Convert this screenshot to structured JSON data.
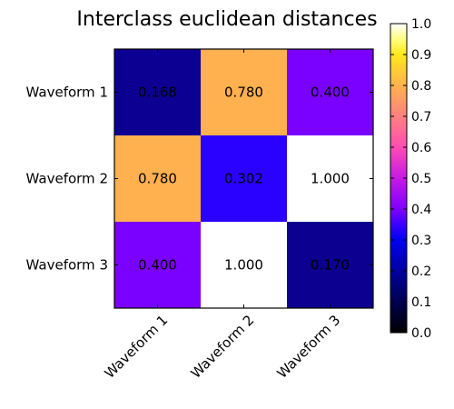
{
  "chart_data": {
    "type": "heatmap",
    "title": "Interclass euclidean distances",
    "xlabel": "",
    "ylabel": "",
    "rows": [
      "Waveform 1",
      "Waveform 2",
      "Waveform 3"
    ],
    "columns": [
      "Waveform 1",
      "Waveform 2",
      "Waveform 3"
    ],
    "values": [
      [
        0.168,
        0.78,
        0.4
      ],
      [
        0.78,
        0.302,
        1.0
      ],
      [
        0.4,
        1.0,
        0.17
      ]
    ],
    "cell_labels": [
      [
        "0.168",
        "0.780",
        "0.400"
      ],
      [
        "0.780",
        "0.302",
        "1.000"
      ],
      [
        "0.400",
        "1.000",
        "0.170"
      ]
    ],
    "colorbar": {
      "range": [
        0.0,
        1.0
      ],
      "ticks": [
        0.0,
        0.1,
        0.2,
        0.3,
        0.4,
        0.5,
        0.6,
        0.7,
        0.8,
        0.9,
        1.0
      ],
      "tick_labels": [
        "0.0",
        "0.1",
        "0.2",
        "0.3",
        "0.4",
        "0.5",
        "0.6",
        "0.7",
        "0.8",
        "0.9",
        "1.0"
      ],
      "colormap": "gnuplot2",
      "stops": [
        {
          "v": 0.0,
          "color": "#000000"
        },
        {
          "v": 0.1,
          "color": "#000050"
        },
        {
          "v": 0.2,
          "color": "#0000A0"
        },
        {
          "v": 0.3,
          "color": "#0000F0"
        },
        {
          "v": 0.35,
          "color": "#3B00FF"
        },
        {
          "v": 0.4,
          "color": "#7F00FF"
        },
        {
          "v": 0.5,
          "color": "#C61AE5"
        },
        {
          "v": 0.6,
          "color": "#FF4DB2"
        },
        {
          "v": 0.7,
          "color": "#FF8080"
        },
        {
          "v": 0.8,
          "color": "#FFB34D"
        },
        {
          "v": 0.9,
          "color": "#FFE81A"
        },
        {
          "v": 0.95,
          "color": "#FFFF80"
        },
        {
          "v": 1.0,
          "color": "#FFFFFF"
        }
      ]
    },
    "cell_colors": [
      [
        "#0C0093",
        "#FFB04F",
        "#7A00FF"
      ],
      [
        "#FFB04F",
        "#2A00FF",
        "#FFFFFF"
      ],
      [
        "#7A00FF",
        "#FFFFFF",
        "#0C0090"
      ]
    ]
  }
}
